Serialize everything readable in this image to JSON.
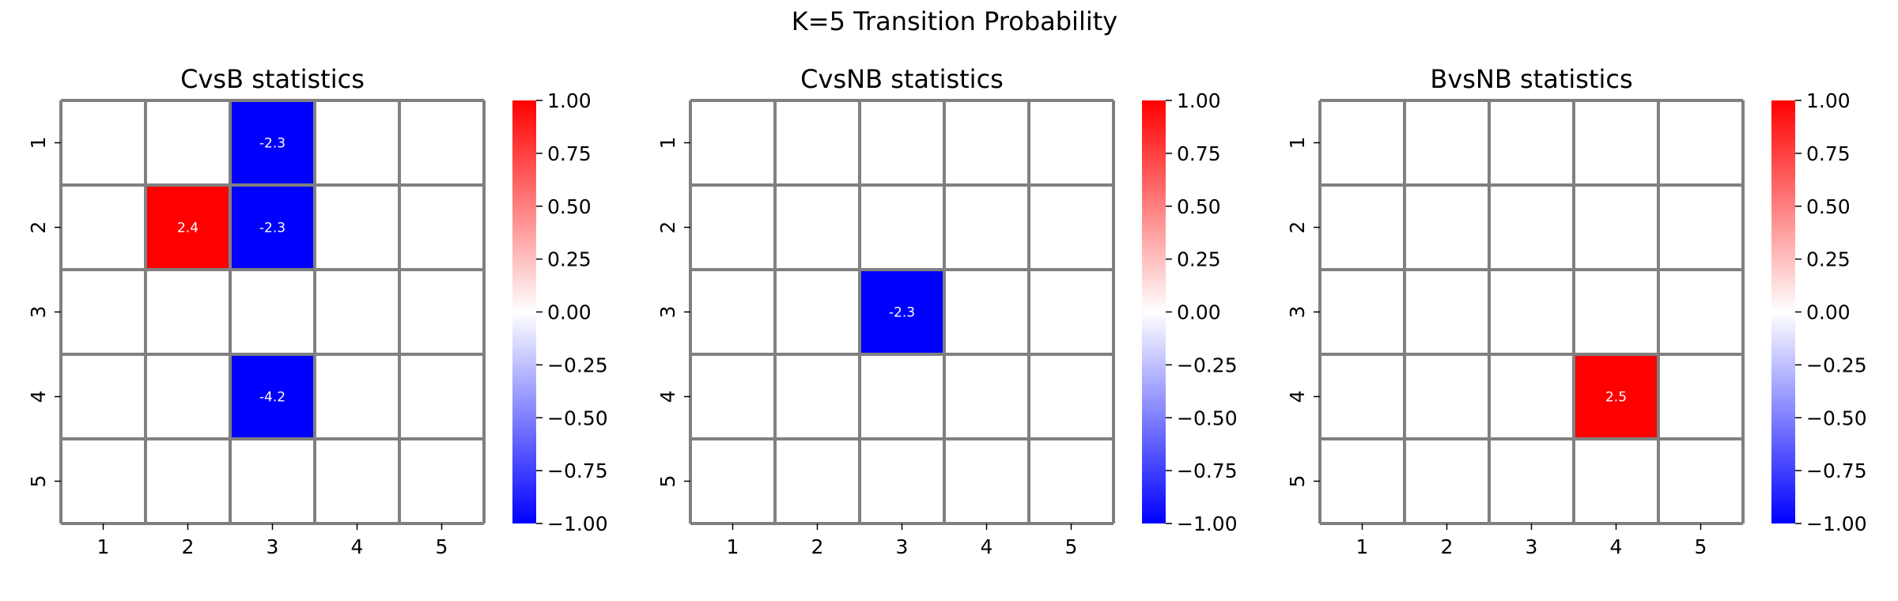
{
  "figure": {
    "title": "K=5 Transition Probability"
  },
  "chart_data": [
    {
      "type": "heatmap",
      "title": "CvsB statistics",
      "x_categories": [
        "1",
        "2",
        "3",
        "4",
        "5"
      ],
      "y_categories": [
        "1",
        "2",
        "3",
        "4",
        "5"
      ],
      "cells": [
        {
          "row": "1",
          "col": "3",
          "value": -2.3,
          "label": "-2.3"
        },
        {
          "row": "2",
          "col": "2",
          "value": 2.4,
          "label": "2.4"
        },
        {
          "row": "2",
          "col": "3",
          "value": -2.3,
          "label": "-2.3"
        },
        {
          "row": "4",
          "col": "3",
          "value": -4.2,
          "label": "-4.2"
        }
      ],
      "empty_cells": "blank (no value)",
      "colormap": {
        "name": "bwr",
        "low": "#0000ff",
        "mid": "#ffffff",
        "high": "#ff0000",
        "vmin": -1.0,
        "vmax": 1.0
      },
      "colorbar_ticks": [
        "1.00",
        "0.75",
        "0.50",
        "0.25",
        "0.00",
        "−0.25",
        "−0.50",
        "−0.75",
        "−1.00"
      ],
      "grid": true,
      "grid_color": "#808080"
    },
    {
      "type": "heatmap",
      "title": "CvsNB statistics",
      "x_categories": [
        "1",
        "2",
        "3",
        "4",
        "5"
      ],
      "y_categories": [
        "1",
        "2",
        "3",
        "4",
        "5"
      ],
      "cells": [
        {
          "row": "3",
          "col": "3",
          "value": -2.3,
          "label": "-2.3"
        }
      ],
      "empty_cells": "blank (no value)",
      "colormap": {
        "name": "bwr",
        "low": "#0000ff",
        "mid": "#ffffff",
        "high": "#ff0000",
        "vmin": -1.0,
        "vmax": 1.0
      },
      "colorbar_ticks": [
        "1.00",
        "0.75",
        "0.50",
        "0.25",
        "0.00",
        "−0.25",
        "−0.50",
        "−0.75",
        "−1.00"
      ],
      "grid": true,
      "grid_color": "#808080"
    },
    {
      "type": "heatmap",
      "title": "BvsNB statistics",
      "x_categories": [
        "1",
        "2",
        "3",
        "4",
        "5"
      ],
      "y_categories": [
        "1",
        "2",
        "3",
        "4",
        "5"
      ],
      "cells": [
        {
          "row": "4",
          "col": "4",
          "value": 2.5,
          "label": "2.5"
        }
      ],
      "empty_cells": "blank (no value)",
      "colormap": {
        "name": "bwr",
        "low": "#0000ff",
        "mid": "#ffffff",
        "high": "#ff0000",
        "vmin": -1.0,
        "vmax": 1.0
      },
      "colorbar_ticks": [
        "1.00",
        "0.75",
        "0.50",
        "0.25",
        "0.00",
        "−0.25",
        "−0.50",
        "−0.75",
        "−1.00"
      ],
      "grid": true,
      "grid_color": "#808080"
    }
  ]
}
